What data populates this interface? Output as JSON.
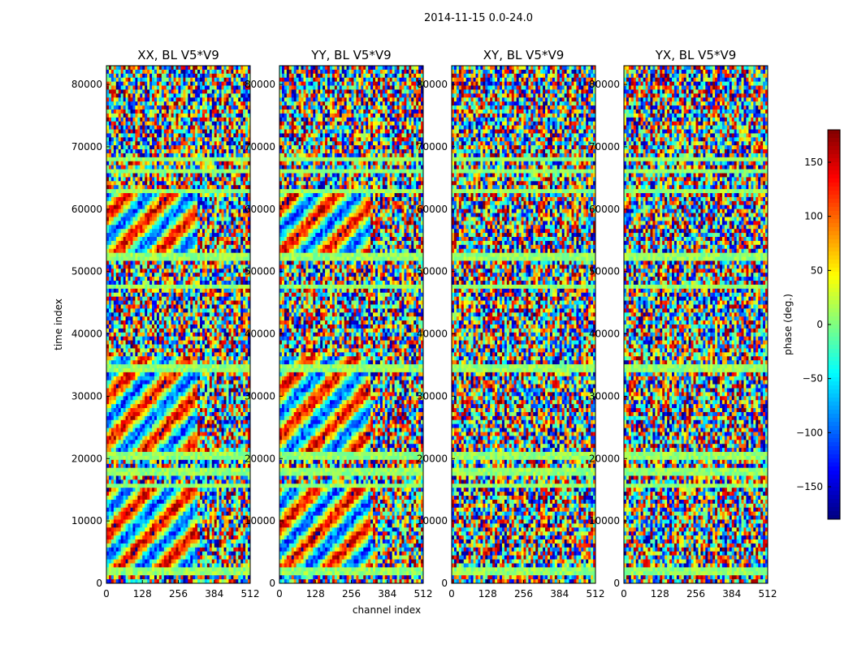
{
  "chart_data": {
    "type": "heatmap",
    "suptitle": "2014-11-15 0.0-24.0",
    "xlabel": "channel index",
    "ylabel": "time index",
    "xlim": [
      0,
      512
    ],
    "ylim": [
      0,
      83000
    ],
    "x_ticks": [
      "0",
      "128",
      "256",
      "384",
      "512"
    ],
    "x_tick_values": [
      0,
      128,
      256,
      384,
      512
    ],
    "y_ticks": [
      "0",
      "10000",
      "20000",
      "30000",
      "40000",
      "50000",
      "60000",
      "70000",
      "80000"
    ],
    "y_tick_values": [
      0,
      10000,
      20000,
      30000,
      40000,
      50000,
      60000,
      70000,
      80000
    ],
    "panels": [
      {
        "title": "XX, BL V5*V9"
      },
      {
        "title": "YY, BL V5*V9"
      },
      {
        "title": "XY, BL V5*V9"
      },
      {
        "title": "YX, BL V5*V9"
      }
    ],
    "colorbar": {
      "label": "phase (deg.)",
      "range": [
        -180,
        180
      ],
      "ticks": [
        "150",
        "100",
        "50",
        "0",
        "−50",
        "−100",
        "−150"
      ],
      "tick_values": [
        150,
        100,
        50,
        0,
        -50,
        -100,
        -150
      ],
      "colormap": "jet"
    }
  }
}
